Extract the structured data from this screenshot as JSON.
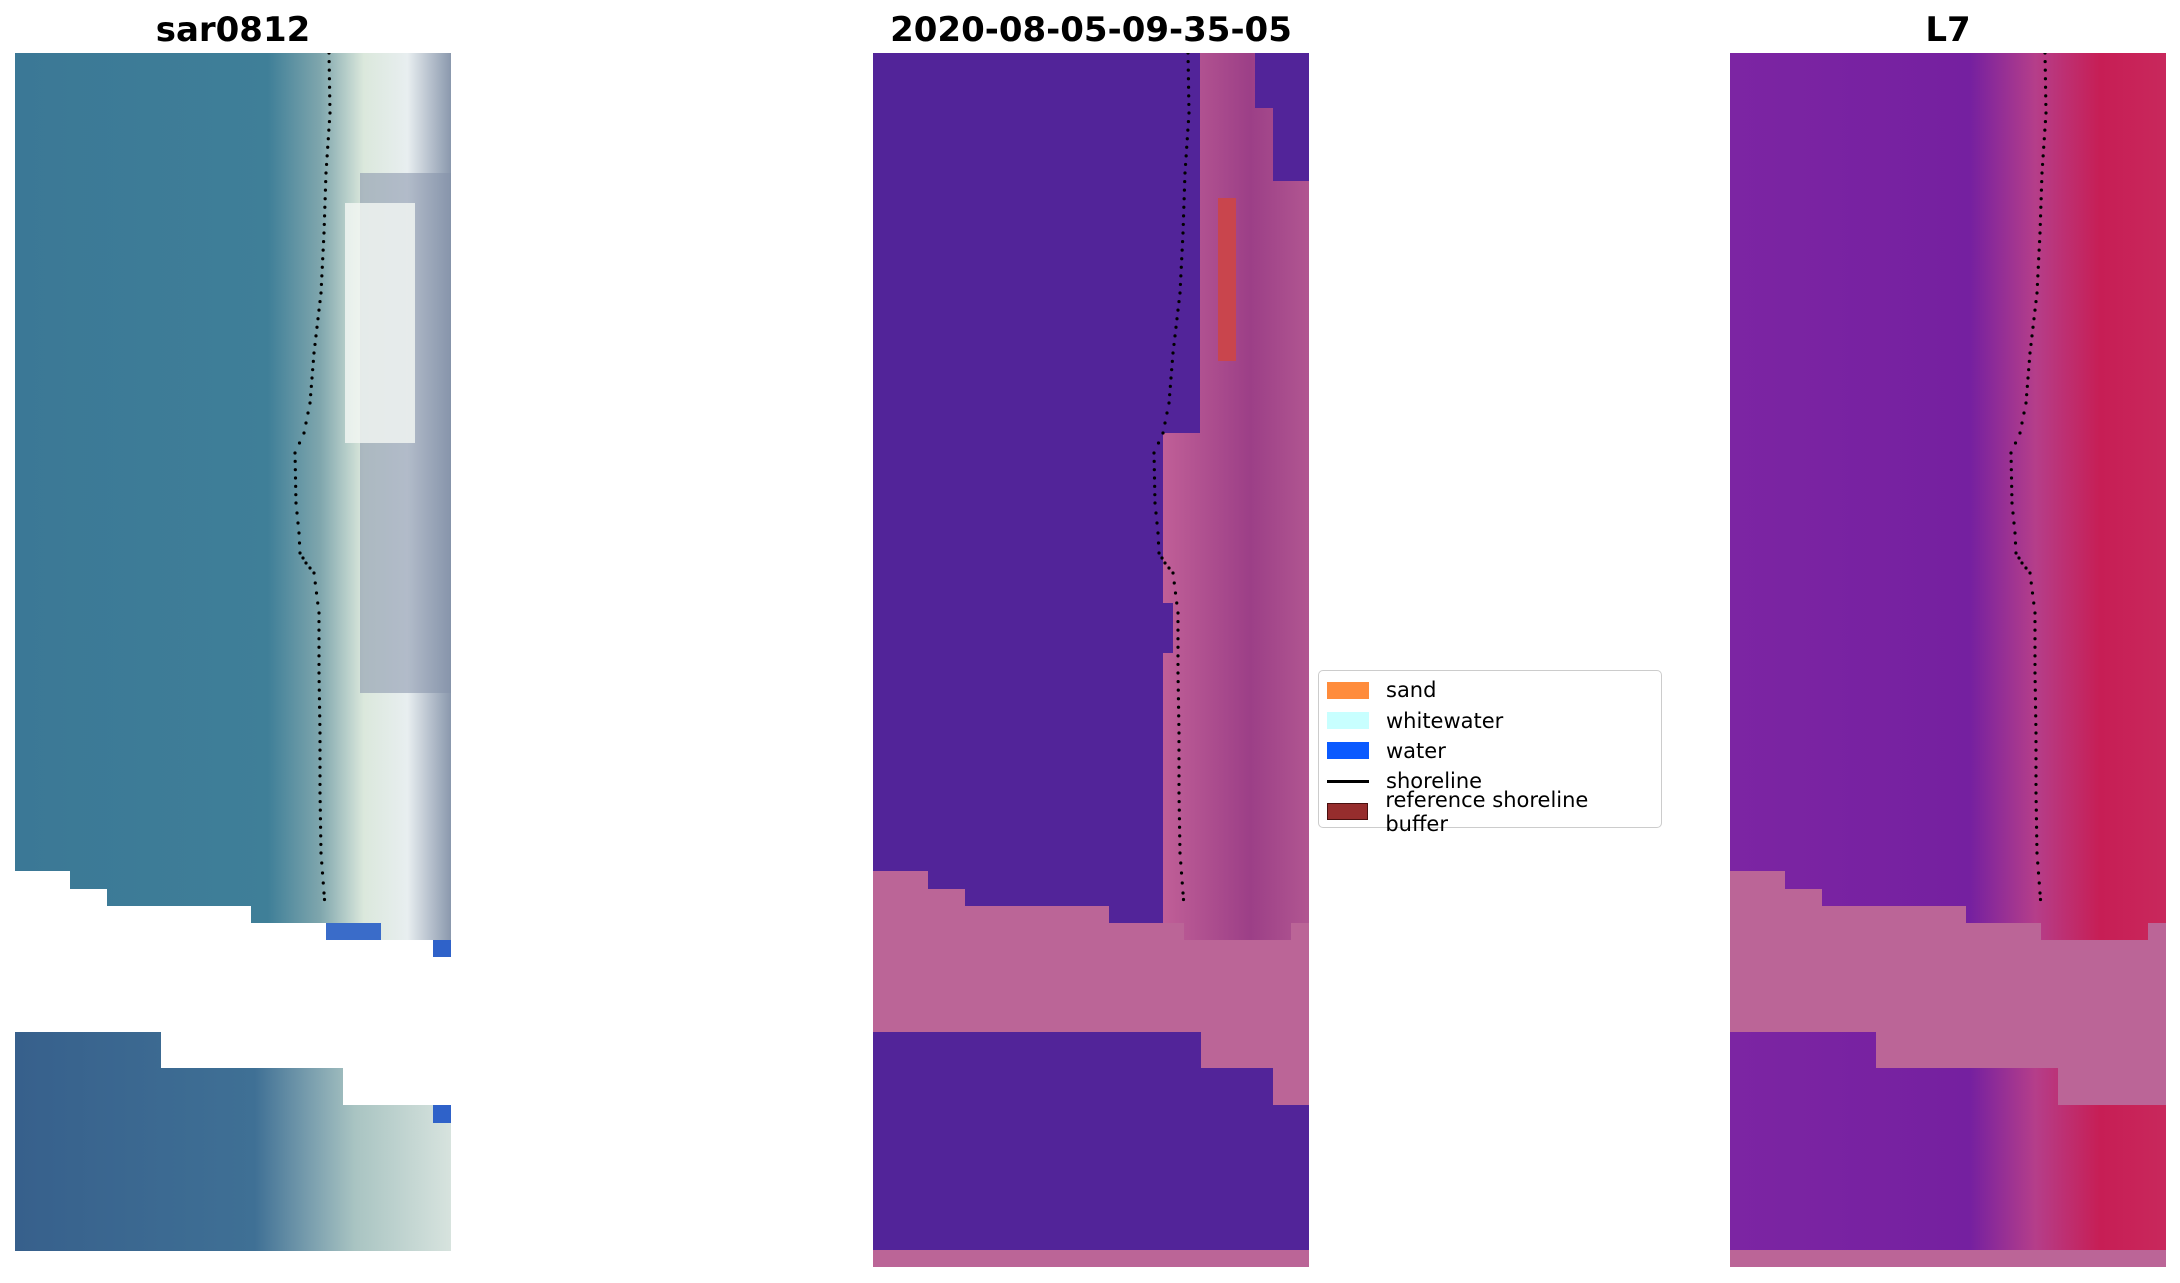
{
  "panels": [
    {
      "id": "rgb",
      "title": "sar0812"
    },
    {
      "id": "classified",
      "title": "2020-08-05-09-35-05"
    },
    {
      "id": "index",
      "title": "L7"
    }
  ],
  "legend": {
    "items": [
      {
        "label": "sand",
        "color": "#ff8c3c",
        "kind": "patch"
      },
      {
        "label": "whitewater",
        "color": "#c8ffff",
        "kind": "patch"
      },
      {
        "label": "water",
        "color": "#0a5aff",
        "kind": "patch"
      },
      {
        "label": "shoreline",
        "color": "#000000",
        "kind": "line"
      },
      {
        "label": "reference shoreline buffer",
        "color": "#962d2d",
        "kind": "patch"
      }
    ]
  },
  "colors": {
    "water_rgb": "#3b7896",
    "beach_rgb": "#c7dcd9",
    "classified_water": "#522499",
    "classified_mask": "#bb6597",
    "buffer_red": "#c9454d",
    "index_purple": "#7a22a2",
    "index_red": "#c51c52",
    "shoreline": "#000000"
  }
}
